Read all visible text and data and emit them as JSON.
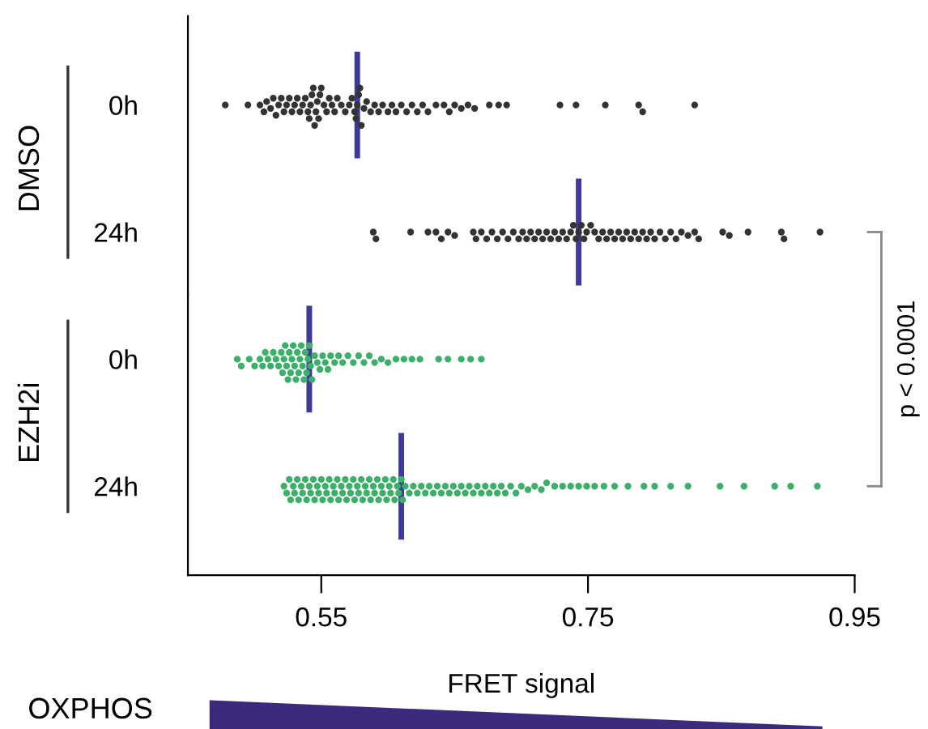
{
  "chart_data": [
    {
      "type": "scatter",
      "orientation": "horizontal",
      "ylabel": "DMSO",
      "categories": [
        "0h",
        "24h"
      ],
      "xlim": [
        0.45,
        0.95
      ],
      "tick_labels": "y",
      "grid": false,
      "legend": false,
      "marker": "circle",
      "ref_lines": [
        {
          "axis": "x",
          "value": 0.577,
          "color": "#3e3a9a"
        },
        {
          "axis": "x",
          "value": 0.743,
          "color": "#3e3a9a"
        }
      ],
      "series": [
        {
          "color": "#333333",
          "x": [
            "0h",
            "0h",
            "0h",
            "0h",
            "0h",
            "0h",
            "0h",
            "0h",
            "0h",
            "0h",
            "0h",
            "0h",
            "0h",
            "0h",
            "0h",
            "0h",
            "0h",
            "0h",
            "0h",
            "0h",
            "0h",
            "0h",
            "0h",
            "0h",
            "0h",
            "0h",
            "0h",
            "0h",
            "0h",
            "0h",
            "0h",
            "0h",
            "0h",
            "0h",
            "0h",
            "0h",
            "0h",
            "0h",
            "0h",
            "0h",
            "0h",
            "0h",
            "0h",
            "0h",
            "0h",
            "0h",
            "0h",
            "0h",
            "0h",
            "0h",
            "0h",
            "0h",
            "0h",
            "0h",
            "0h",
            "0h",
            "0h",
            "0h",
            "0h",
            "0h",
            "0h",
            "0h",
            "0h",
            "0h",
            "0h",
            "0h",
            "0h",
            "0h",
            "0h",
            "0h",
            "0h",
            "0h",
            "0h",
            "0h",
            "0h",
            "0h",
            "0h"
          ],
          "values": [
            0.478,
            0.495,
            0.504,
            0.507,
            0.509,
            0.512,
            0.514,
            0.516,
            0.518,
            0.52,
            0.522,
            0.524,
            0.526,
            0.528,
            0.53,
            0.532,
            0.534,
            0.536,
            0.538,
            0.54,
            0.541,
            0.542,
            0.543,
            0.544,
            0.545,
            0.546,
            0.547,
            0.548,
            0.549,
            0.55,
            0.552,
            0.554,
            0.556,
            0.558,
            0.56,
            0.562,
            0.565,
            0.568,
            0.571,
            0.573,
            0.575,
            0.576,
            0.577,
            0.578,
            0.579,
            0.58,
            0.582,
            0.584,
            0.587,
            0.59,
            0.593,
            0.596,
            0.6,
            0.603,
            0.606,
            0.61,
            0.614,
            0.618,
            0.622,
            0.626,
            0.63,
            0.636,
            0.642,
            0.646,
            0.65,
            0.655,
            0.66,
            0.665,
            0.676,
            0.683,
            0.689,
            0.729,
            0.741,
            0.763,
            0.788,
            0.791,
            0.83
          ]
        },
        {
          "color": "#333333",
          "x": [
            "24h",
            "24h",
            "24h",
            "24h",
            "24h",
            "24h",
            "24h",
            "24h",
            "24h",
            "24h",
            "24h",
            "24h",
            "24h",
            "24h",
            "24h",
            "24h",
            "24h",
            "24h",
            "24h",
            "24h",
            "24h",
            "24h",
            "24h",
            "24h",
            "24h",
            "24h",
            "24h",
            "24h",
            "24h",
            "24h",
            "24h",
            "24h",
            "24h",
            "24h",
            "24h",
            "24h",
            "24h",
            "24h",
            "24h",
            "24h",
            "24h",
            "24h",
            "24h",
            "24h",
            "24h",
            "24h",
            "24h",
            "24h",
            "24h",
            "24h",
            "24h",
            "24h",
            "24h",
            "24h",
            "24h",
            "24h",
            "24h",
            "24h",
            "24h",
            "24h",
            "24h",
            "24h",
            "24h",
            "24h",
            "24h",
            "24h",
            "24h",
            "24h"
          ],
          "values": [
            0.589,
            0.591,
            0.617,
            0.63,
            0.636,
            0.64,
            0.645,
            0.65,
            0.664,
            0.666,
            0.67,
            0.674,
            0.678,
            0.682,
            0.686,
            0.69,
            0.694,
            0.698,
            0.701,
            0.704,
            0.707,
            0.71,
            0.713,
            0.716,
            0.719,
            0.722,
            0.725,
            0.728,
            0.731,
            0.734,
            0.737,
            0.739,
            0.741,
            0.743,
            0.745,
            0.747,
            0.749,
            0.752,
            0.755,
            0.758,
            0.761,
            0.764,
            0.767,
            0.77,
            0.773,
            0.776,
            0.779,
            0.782,
            0.785,
            0.788,
            0.791,
            0.794,
            0.797,
            0.8,
            0.804,
            0.808,
            0.812,
            0.816,
            0.82,
            0.825,
            0.83,
            0.833,
            0.851,
            0.856,
            0.87,
            0.895,
            0.897,
            0.924
          ]
        }
      ]
    },
    {
      "type": "scatter",
      "orientation": "horizontal",
      "ylabel": "EZH2i",
      "xlabel": "FRET signal",
      "categories": [
        "0h",
        "24h"
      ],
      "xlim": [
        0.45,
        0.95
      ],
      "xticks": [
        0.55,
        0.75,
        0.95
      ],
      "grid": false,
      "legend": false,
      "marker": "circle",
      "annotations": [
        "p < 0.0001",
        "OXPHOS"
      ],
      "ref_lines": [
        {
          "axis": "x",
          "value": 0.541,
          "color": "#3e3a9a"
        },
        {
          "axis": "x",
          "value": 0.61,
          "color": "#3e3a9a"
        }
      ],
      "series": [
        {
          "color": "#3daf6a",
          "x": [
            "0h",
            "0h",
            "0h",
            "0h",
            "0h",
            "0h",
            "0h",
            "0h",
            "0h",
            "0h",
            "0h",
            "0h",
            "0h",
            "0h",
            "0h",
            "0h",
            "0h",
            "0h",
            "0h",
            "0h",
            "0h",
            "0h",
            "0h",
            "0h",
            "0h",
            "0h",
            "0h",
            "0h",
            "0h",
            "0h",
            "0h",
            "0h",
            "0h",
            "0h",
            "0h",
            "0h",
            "0h",
            "0h",
            "0h",
            "0h",
            "0h",
            "0h",
            "0h",
            "0h",
            "0h",
            "0h",
            "0h",
            "0h",
            "0h",
            "0h",
            "0h",
            "0h",
            "0h",
            "0h",
            "0h",
            "0h",
            "0h",
            "0h",
            "0h",
            "0h",
            "0h",
            "0h",
            "0h"
          ],
          "values": [
            0.487,
            0.49,
            0.496,
            0.5,
            0.504,
            0.506,
            0.508,
            0.51,
            0.512,
            0.514,
            0.516,
            0.518,
            0.52,
            0.521,
            0.522,
            0.523,
            0.524,
            0.525,
            0.526,
            0.527,
            0.528,
            0.529,
            0.53,
            0.531,
            0.532,
            0.533,
            0.534,
            0.535,
            0.536,
            0.537,
            0.538,
            0.539,
            0.54,
            0.541,
            0.542,
            0.543,
            0.545,
            0.547,
            0.549,
            0.551,
            0.553,
            0.555,
            0.557,
            0.56,
            0.563,
            0.566,
            0.57,
            0.574,
            0.578,
            0.582,
            0.586,
            0.59,
            0.595,
            0.6,
            0.606,
            0.612,
            0.618,
            0.624,
            0.638,
            0.645,
            0.655,
            0.662,
            0.67
          ]
        },
        {
          "color": "#3daf6a",
          "x": [
            "24h",
            "24h",
            "24h",
            "24h",
            "24h",
            "24h",
            "24h",
            "24h",
            "24h",
            "24h",
            "24h",
            "24h",
            "24h",
            "24h",
            "24h",
            "24h",
            "24h",
            "24h",
            "24h",
            "24h",
            "24h",
            "24h",
            "24h",
            "24h",
            "24h",
            "24h",
            "24h",
            "24h",
            "24h",
            "24h",
            "24h",
            "24h",
            "24h",
            "24h",
            "24h",
            "24h",
            "24h",
            "24h",
            "24h",
            "24h",
            "24h",
            "24h",
            "24h",
            "24h",
            "24h",
            "24h",
            "24h",
            "24h",
            "24h",
            "24h",
            "24h",
            "24h",
            "24h",
            "24h",
            "24h",
            "24h",
            "24h",
            "24h",
            "24h",
            "24h",
            "24h",
            "24h",
            "24h",
            "24h",
            "24h",
            "24h",
            "24h",
            "24h",
            "24h",
            "24h",
            "24h",
            "24h",
            "24h",
            "24h",
            "24h",
            "24h",
            "24h",
            "24h",
            "24h",
            "24h",
            "24h",
            "24h",
            "24h",
            "24h",
            "24h",
            "24h",
            "24h",
            "24h",
            "24h",
            "24h",
            "24h",
            "24h",
            "24h",
            "24h",
            "24h",
            "24h",
            "24h",
            "24h",
            "24h",
            "24h",
            "24h",
            "24h",
            "24h",
            "24h",
            "24h",
            "24h",
            "24h",
            "24h",
            "24h",
            "24h",
            "24h"
          ],
          "values": [
            0.522,
            0.524,
            0.526,
            0.527,
            0.529,
            0.53,
            0.532,
            0.533,
            0.535,
            0.536,
            0.538,
            0.539,
            0.541,
            0.542,
            0.544,
            0.545,
            0.547,
            0.548,
            0.55,
            0.551,
            0.553,
            0.554,
            0.556,
            0.557,
            0.559,
            0.56,
            0.562,
            0.563,
            0.565,
            0.566,
            0.568,
            0.569,
            0.571,
            0.572,
            0.574,
            0.575,
            0.577,
            0.578,
            0.58,
            0.581,
            0.583,
            0.584,
            0.586,
            0.587,
            0.589,
            0.59,
            0.592,
            0.593,
            0.595,
            0.596,
            0.598,
            0.599,
            0.601,
            0.602,
            0.604,
            0.605,
            0.607,
            0.608,
            0.61,
            0.611,
            0.613,
            0.616,
            0.619,
            0.622,
            0.625,
            0.628,
            0.631,
            0.634,
            0.637,
            0.64,
            0.643,
            0.646,
            0.649,
            0.652,
            0.655,
            0.658,
            0.661,
            0.664,
            0.667,
            0.67,
            0.673,
            0.676,
            0.679,
            0.682,
            0.685,
            0.688,
            0.692,
            0.696,
            0.7,
            0.705,
            0.71,
            0.715,
            0.719,
            0.725,
            0.731,
            0.737,
            0.743,
            0.749,
            0.755,
            0.762,
            0.77,
            0.78,
            0.792,
            0.8,
            0.812,
            0.825,
            0.849,
            0.867,
            0.89,
            0.902,
            0.922
          ]
        }
      ]
    }
  ]
}
